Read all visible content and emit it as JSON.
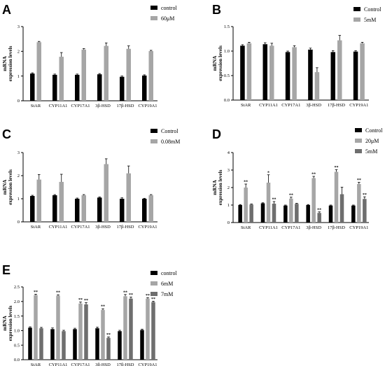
{
  "chart_data": [
    {
      "panel": "A",
      "type": "bar",
      "categories": [
        "StAR",
        "CYP11A1",
        "CYP17A1",
        "3β-HSD",
        "17β-HSD",
        "CYP19A1"
      ],
      "ylabel": [
        "mRNA",
        "expression levels"
      ],
      "ylim": [
        0,
        3
      ],
      "yticks": [
        "0",
        "1",
        "2",
        "3"
      ],
      "legend_placement": "top-right",
      "series": [
        {
          "name": "control",
          "color": "#000000",
          "values": [
            1.1,
            1.05,
            1.05,
            1.07,
            0.97,
            1.02
          ],
          "errors": [
            0.03,
            0.03,
            0.03,
            0.03,
            0.03,
            0.03
          ],
          "stars": [
            "",
            "",
            "",
            "",
            "",
            ""
          ]
        },
        {
          "name": "60μM",
          "color": "#a6a6a6",
          "values": [
            2.37,
            1.78,
            2.07,
            2.22,
            2.1,
            2.01
          ],
          "errors": [
            0.03,
            0.17,
            0.04,
            0.12,
            0.12,
            0.03
          ],
          "stars": [
            "",
            "",
            "",
            "",
            "",
            ""
          ]
        }
      ]
    },
    {
      "panel": "B",
      "type": "bar",
      "categories": [
        "StAR",
        "CYP11A1",
        "CYP17A1",
        "3β-HSD",
        "17β-HSD",
        "CYP19A1"
      ],
      "ylabel": [
        "mRNA",
        "expression levels"
      ],
      "ylim": [
        0,
        1.5
      ],
      "yticks": [
        "0.0",
        "0.5",
        "1.0",
        "1.5"
      ],
      "legend_placement": "top-right",
      "series": [
        {
          "name": "Control",
          "color": "#000000",
          "values": [
            1.11,
            1.14,
            0.98,
            1.03,
            0.98,
            0.99
          ],
          "errors": [
            0.02,
            0.03,
            0.02,
            0.03,
            0.03,
            0.02
          ],
          "stars": [
            "",
            "",
            "",
            "",
            "",
            ""
          ]
        },
        {
          "name": "5mM",
          "color": "#a6a6a6",
          "values": [
            1.16,
            1.11,
            1.08,
            0.57,
            1.22,
            1.16
          ],
          "errors": [
            0.02,
            0.05,
            0.03,
            0.09,
            0.1,
            0.02
          ],
          "stars": [
            "",
            "",
            "",
            "",
            "",
            ""
          ]
        }
      ]
    },
    {
      "panel": "C",
      "type": "bar",
      "categories": [
        "StAR",
        "CYP11A1",
        "CYP17A1",
        "3β-HSD",
        "17β-HSD",
        "CYP19A1"
      ],
      "ylabel": [
        "mRNA",
        "expression levels"
      ],
      "ylim": [
        0,
        3
      ],
      "yticks": [
        "0",
        "1",
        "2",
        "3"
      ],
      "legend_placement": "top-right",
      "series": [
        {
          "name": "Control",
          "color": "#000000",
          "values": [
            1.12,
            1.15,
            1.0,
            1.05,
            1.0,
            1.0
          ],
          "errors": [
            0.03,
            0.03,
            0.03,
            0.03,
            0.04,
            0.02
          ],
          "stars": [
            "",
            "",
            "",
            "",
            "",
            ""
          ]
        },
        {
          "name": "0.08mM",
          "color": "#a6a6a6",
          "values": [
            1.83,
            1.73,
            1.15,
            2.5,
            2.1,
            1.15
          ],
          "errors": [
            0.22,
            0.33,
            0.03,
            0.23,
            0.32,
            0.03
          ],
          "stars": [
            "",
            "",
            "",
            "",
            "",
            ""
          ]
        }
      ]
    },
    {
      "panel": "D",
      "type": "bar",
      "categories": [
        "StAR",
        "CYP11A1",
        "CYP17A1",
        "3β-HSD",
        "17β-HSD",
        "CYP19A1"
      ],
      "ylabel": [
        "mRNA",
        "expression levels"
      ],
      "ylim": [
        0,
        4
      ],
      "yticks": [
        "0",
        "1",
        "2",
        "3",
        "4"
      ],
      "legend_placement": "top-right",
      "series": [
        {
          "name": "Control",
          "color": "#000000",
          "values": [
            1.0,
            1.1,
            0.97,
            1.0,
            0.97,
            0.97
          ],
          "errors": [
            0.03,
            0.03,
            0.03,
            0.03,
            0.03,
            0.03
          ],
          "stars": [
            "",
            "",
            "",
            "",
            "",
            ""
          ]
        },
        {
          "name": "20μM",
          "color": "#a6a6a6",
          "values": [
            2.0,
            2.28,
            1.37,
            2.54,
            2.9,
            2.2
          ],
          "errors": [
            0.2,
            0.45,
            0.08,
            0.1,
            0.12,
            0.1
          ],
          "stars": [
            "**",
            "*",
            "**",
            "**",
            "**",
            "**"
          ]
        },
        {
          "name": "5mM",
          "color": "#6e6e6e",
          "values": [
            1.03,
            1.08,
            1.07,
            0.55,
            1.62,
            1.35
          ],
          "errors": [
            0.03,
            0.12,
            0.03,
            0.06,
            0.4,
            0.12
          ],
          "stars": [
            "",
            "**",
            "",
            "**",
            "",
            "**"
          ]
        }
      ]
    },
    {
      "panel": "E",
      "type": "bar",
      "categories": [
        "StAR",
        "CYP11A1",
        "CYP17A1",
        "3β-HSD",
        "17β-HSD",
        "CYP19A1"
      ],
      "ylabel": [
        "mRNA",
        "expression levels"
      ],
      "ylim": [
        0,
        2.5
      ],
      "yticks": [
        "0.0",
        "0.5",
        "1.0",
        "1.5",
        "2.0",
        "2.5"
      ],
      "legend_placement": "top-right",
      "series": [
        {
          "name": "control",
          "color": "#000000",
          "values": [
            1.1,
            1.05,
            1.05,
            1.08,
            0.98,
            1.02
          ],
          "errors": [
            0.03,
            0.04,
            0.03,
            0.04,
            0.03,
            0.03
          ],
          "stars": [
            "",
            "",
            "",
            "",
            "",
            ""
          ]
        },
        {
          "name": "6mM",
          "color": "#a6a6a6",
          "values": [
            2.22,
            2.2,
            1.93,
            1.71,
            2.18,
            2.1
          ],
          "errors": [
            0.03,
            0.03,
            0.05,
            0.04,
            0.06,
            0.03
          ],
          "stars": [
            "**",
            "**",
            "**",
            "**",
            "**",
            "**"
          ]
        },
        {
          "name": "7mM",
          "color": "#6e6e6e",
          "values": [
            1.08,
            0.98,
            1.9,
            0.75,
            2.1,
            1.98
          ],
          "errors": [
            0.03,
            0.03,
            0.06,
            0.03,
            0.05,
            0.03
          ],
          "stars": [
            "",
            "",
            "**",
            "**",
            "**",
            "**"
          ]
        }
      ]
    }
  ]
}
